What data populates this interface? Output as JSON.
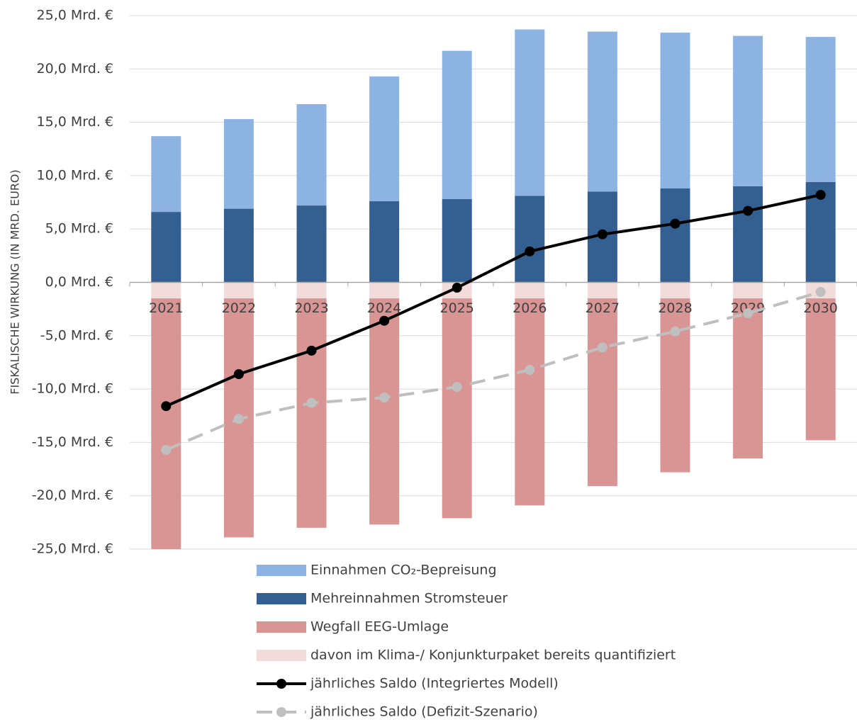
{
  "chart_data": {
    "type": "bar",
    "ylabel": "FISKALISCHE WIRKUNG (IN MRD. EURO)",
    "categories": [
      "2021",
      "2022",
      "2023",
      "2024",
      "2025",
      "2026",
      "2027",
      "2028",
      "2029",
      "2030"
    ],
    "series": [
      {
        "name": "Einnahmen CO₂-Bepreisung",
        "type": "bar",
        "color": "#8db3e2",
        "values": [
          7.1,
          8.4,
          9.5,
          11.7,
          13.9,
          15.6,
          15.0,
          14.6,
          14.1,
          13.6
        ]
      },
      {
        "name": "Mehreinnahmen Stromsteuer",
        "type": "bar",
        "color": "#335f91",
        "values": [
          6.6,
          6.9,
          7.2,
          7.6,
          7.8,
          8.1,
          8.5,
          8.8,
          9.0,
          9.4
        ]
      },
      {
        "name": "Wegfall EEG-Umlage",
        "type": "bar",
        "color": "#d99594",
        "values": [
          -23.5,
          -22.4,
          -21.5,
          -21.2,
          -20.6,
          -19.4,
          -17.6,
          -16.3,
          -15.0,
          -13.3
        ]
      },
      {
        "name": "davon im Klima-/ Konjunkturpaket bereits quantifiziert",
        "type": "bar",
        "color": "#f2dcdb",
        "values": [
          -1.5,
          -1.5,
          -1.5,
          -1.5,
          -1.5,
          -1.5,
          -1.5,
          -1.5,
          -1.5,
          -1.5
        ]
      },
      {
        "name": "jährliches Saldo (Integriertes Modell)",
        "type": "line",
        "color": "#000000",
        "values": [
          -11.6,
          -8.6,
          -6.4,
          -3.6,
          -0.5,
          2.9,
          4.5,
          5.5,
          6.7,
          8.2
        ]
      },
      {
        "name": "jährliches Saldo (Defizit-Szenario)",
        "type": "line",
        "color": "#bfbfbf",
        "dashed": true,
        "values": [
          -15.7,
          -12.8,
          -11.3,
          -10.8,
          -9.8,
          -8.2,
          -6.1,
          -4.6,
          -2.9,
          -0.9
        ]
      }
    ],
    "ylim": [
      -25,
      25
    ],
    "yticks": [
      {
        "value": 25,
        "label": "25,0 Mrd. €"
      },
      {
        "value": 20,
        "label": "20,0 Mrd. €"
      },
      {
        "value": 15,
        "label": "15,0 Mrd. €"
      },
      {
        "value": 10,
        "label": "10,0 Mrd. €"
      },
      {
        "value": 5,
        "label": "5,0 Mrd. €"
      },
      {
        "value": 0,
        "label": "0,0 Mrd. €"
      },
      {
        "value": -5,
        "label": "-5,0 Mrd. €"
      },
      {
        "value": -10,
        "label": "-10,0 Mrd. €"
      },
      {
        "value": -15,
        "label": "-15,0 Mrd. €"
      },
      {
        "value": -20,
        "label": "-20,0 Mrd. €"
      },
      {
        "value": -25,
        "label": "-25,0 Mrd. €"
      }
    ],
    "grid": true,
    "legend": "bottom"
  }
}
